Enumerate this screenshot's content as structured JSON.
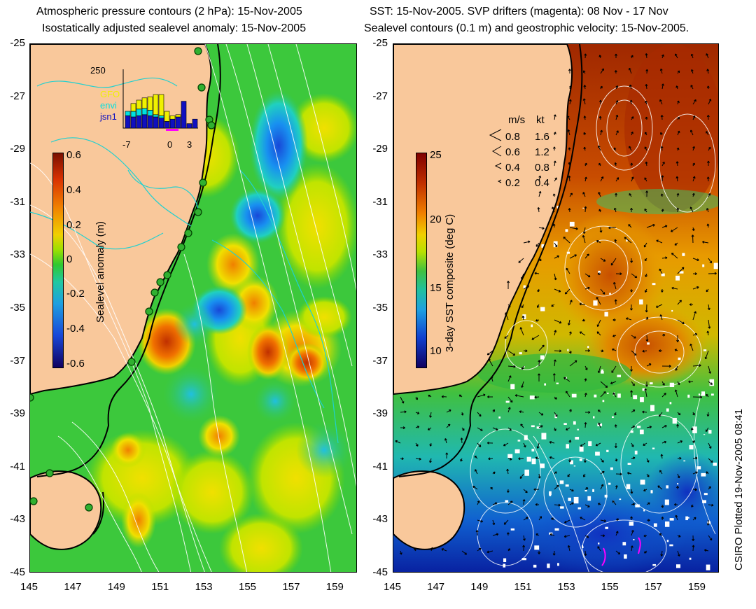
{
  "left_panel": {
    "title_line1": "Atmospheric pressure contours (2 hPa): 15-Nov-2005",
    "title_line2": "Isostatically adjusted sealevel anomaly: 15-Nov-2005",
    "colorbar": {
      "label": "Sealevel anomaly (m)",
      "ticks": [
        "0.6",
        "0.4",
        "0.2",
        "0",
        "-0.2",
        "-0.4",
        "-0.6"
      ]
    },
    "histogram": {
      "ymax_label": "250",
      "x_ticks": [
        "-7",
        "0",
        "3"
      ],
      "legend": [
        {
          "label": "GFO",
          "color": "#f0f000"
        },
        {
          "label": "envi",
          "color": "#00e0e0"
        },
        {
          "label": "jsn1",
          "color": "#1010c0"
        }
      ],
      "bars_total": [
        75,
        110,
        125,
        135,
        140,
        150,
        150,
        75,
        55,
        60,
        120,
        20,
        40
      ],
      "bars_envi": [
        20,
        25,
        30,
        28,
        25,
        10,
        10,
        0,
        0,
        0,
        0,
        0,
        0
      ],
      "bars_jsn1": [
        55,
        50,
        55,
        60,
        55,
        50,
        45,
        30,
        40,
        50,
        120,
        20,
        40
      ]
    }
  },
  "right_panel": {
    "title_line1": "SST: 15-Nov-2005. SVP drifters (magenta): 08 Nov - 17 Nov",
    "title_line2": "Sealevel contours (0.1 m) and geostrophic velocity: 15-Nov-2005.",
    "colorbar": {
      "label": "3-day SST composite (deg C)",
      "ticks": [
        "25",
        "20",
        "15",
        "10"
      ]
    },
    "velocity_legend": {
      "header_ms": "m/s",
      "header_kt": "kt",
      "rows": [
        {
          "ms": "0.8",
          "kt": "1.6"
        },
        {
          "ms": "0.6",
          "kt": "1.2"
        },
        {
          "ms": "0.4",
          "kt": "0.8"
        },
        {
          "ms": "0.2",
          "kt": "0.4"
        }
      ]
    }
  },
  "axes": {
    "y_ticks": [
      "-25",
      "-27",
      "-29",
      "-31",
      "-33",
      "-35",
      "-37",
      "-39",
      "-41",
      "-43",
      "-45"
    ],
    "x_ticks": [
      "145",
      "147",
      "149",
      "151",
      "153",
      "155",
      "157",
      "159"
    ]
  },
  "credit": "CSIRO Plotted 19-Nov-2005 08:41",
  "colors": {
    "land": "#f9c89b",
    "ocean_base": "#3cc83c",
    "coast": "#000000"
  }
}
